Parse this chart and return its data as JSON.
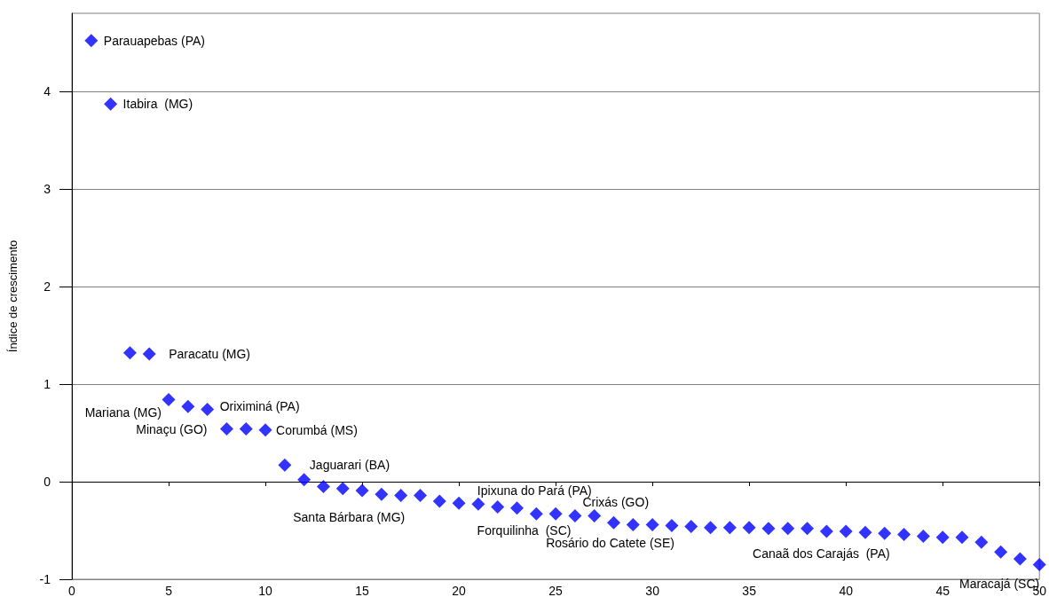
{
  "chart_data": {
    "type": "scatter",
    "ylabel": "Índice de crescimento",
    "x": [
      1,
      2,
      3,
      4,
      5,
      6,
      7,
      8,
      9,
      10,
      11,
      12,
      13,
      14,
      15,
      16,
      17,
      18,
      19,
      20,
      21,
      22,
      23,
      24,
      25,
      26,
      27,
      28,
      29,
      30,
      31,
      32,
      33,
      34,
      35,
      36,
      37,
      38,
      39,
      40,
      41,
      42,
      43,
      44,
      45,
      46,
      47,
      48,
      49,
      50
    ],
    "values": [
      4.52,
      3.87,
      1.32,
      1.31,
      0.84,
      0.77,
      0.74,
      0.54,
      0.54,
      0.53,
      0.17,
      0.02,
      -0.05,
      -0.07,
      -0.09,
      -0.13,
      -0.14,
      -0.14,
      -0.2,
      -0.22,
      -0.23,
      -0.26,
      -0.27,
      -0.33,
      -0.33,
      -0.35,
      -0.35,
      -0.42,
      -0.44,
      -0.44,
      -0.45,
      -0.46,
      -0.47,
      -0.47,
      -0.47,
      -0.48,
      -0.48,
      -0.48,
      -0.51,
      -0.51,
      -0.52,
      -0.53,
      -0.54,
      -0.56,
      -0.57,
      -0.57,
      -0.62,
      -0.72,
      -0.79,
      -0.85
    ],
    "color": "#0000ff",
    "marker": "diamond",
    "xlim": [
      0,
      50
    ],
    "xticks": [
      0,
      5,
      10,
      15,
      20,
      25,
      30,
      35,
      40,
      45,
      50
    ],
    "ylim": [
      -1,
      4.8
    ],
    "yticks": [
      -1,
      0,
      1,
      2,
      3,
      4
    ],
    "grid": "y",
    "annotations": [
      {
        "text": "Parauapebas (PA)",
        "x": 1,
        "y": 4.52
      },
      {
        "text": "Itabira  (MG)",
        "x": 2,
        "y": 3.87
      },
      {
        "text": "Paracatu (MG)",
        "x": 4,
        "y": 1.31
      },
      {
        "text": "Mariana (MG)",
        "x": 5,
        "y": 0.84
      },
      {
        "text": "Oriximiná (PA)",
        "x": 7,
        "y": 0.74
      },
      {
        "text": "Minaçu (GO)",
        "x": 8,
        "y": 0.54
      },
      {
        "text": "Corumbá (MS)",
        "x": 10,
        "y": 0.53
      },
      {
        "text": "Jaguarari (BA)",
        "x": 11,
        "y": 0.17
      },
      {
        "text": "Santa Bárbara (MG)",
        "x": 14,
        "y": -0.07
      },
      {
        "text": "Ipixuna do Pará (PA)",
        "x": 24,
        "y": -0.33
      },
      {
        "text": "Forquilinha  (SC)",
        "x": 23,
        "y": -0.27
      },
      {
        "text": "Crixás (GO)",
        "x": 27,
        "y": -0.35
      },
      {
        "text": "Rosário do Catete (SE)",
        "x": 28,
        "y": -0.42
      },
      {
        "text": "Canaã dos Carajás  (PA)",
        "x": 39,
        "y": -0.51
      },
      {
        "text": "Maracajá (SC)",
        "x": 50,
        "y": -0.85
      }
    ]
  }
}
